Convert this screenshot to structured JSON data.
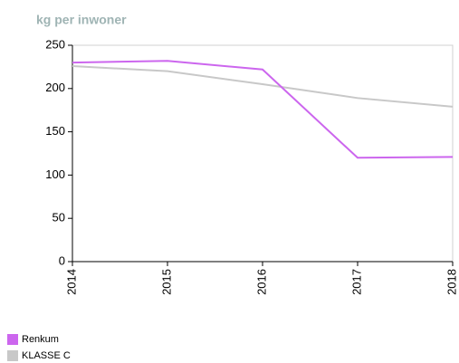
{
  "chart_data": {
    "type": "line",
    "title": "kg per inwoner",
    "categories": [
      "2014",
      "2015",
      "2016",
      "2017",
      "2018"
    ],
    "series": [
      {
        "name": "Renkum",
        "color": "#cc66ee",
        "values": [
          230,
          232,
          222,
          120,
          121
        ]
      },
      {
        "name": "KLASSE C",
        "color": "#c8c8c8",
        "values": [
          226,
          220,
          205,
          189,
          179
        ]
      }
    ],
    "ylim": [
      0,
      250
    ],
    "yticks": [
      0,
      50,
      100,
      150,
      200,
      250
    ],
    "grid": false
  }
}
